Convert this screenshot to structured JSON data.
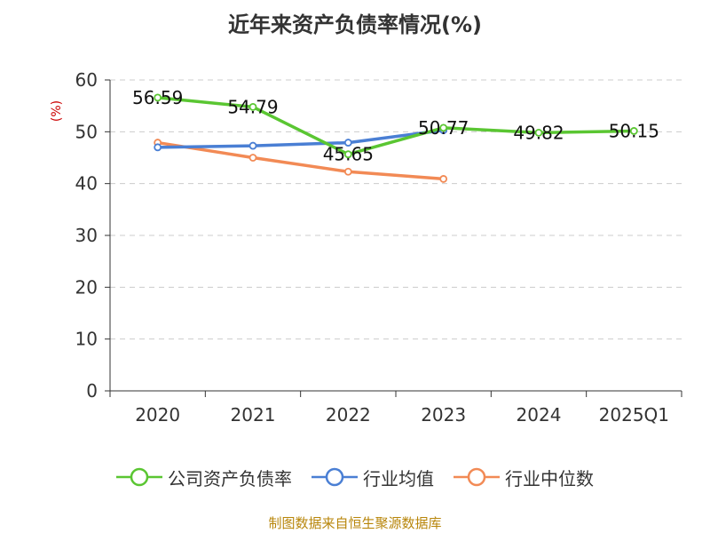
{
  "chart_data": {
    "type": "line",
    "title": "近年来资产负债率情况(%)",
    "ylabel": "(%)",
    "xlabel": "",
    "categories": [
      "2020",
      "2021",
      "2022",
      "2023",
      "2024",
      "2025Q1"
    ],
    "ylim": [
      0,
      60
    ],
    "yticks": [
      0,
      10,
      20,
      30,
      40,
      50,
      60
    ],
    "grid": true,
    "legend_position": "bottom",
    "series": [
      {
        "name": "公司资产负债率",
        "color": "#5ac632",
        "values": [
          56.59,
          54.79,
          45.65,
          50.77,
          49.82,
          50.15
        ],
        "data_labels": [
          "56.59",
          "54.79",
          "45.65",
          "50.77",
          "49.82",
          "50.15"
        ]
      },
      {
        "name": "行业均值",
        "color": "#4a7fd4",
        "values": [
          47.0,
          47.3,
          47.9,
          50.3,
          null,
          null
        ]
      },
      {
        "name": "行业中位数",
        "color": "#f28a55",
        "values": [
          47.9,
          45.0,
          42.3,
          40.9,
          null,
          null
        ]
      }
    ]
  },
  "source_note": "制图数据来自恒生聚源数据库"
}
